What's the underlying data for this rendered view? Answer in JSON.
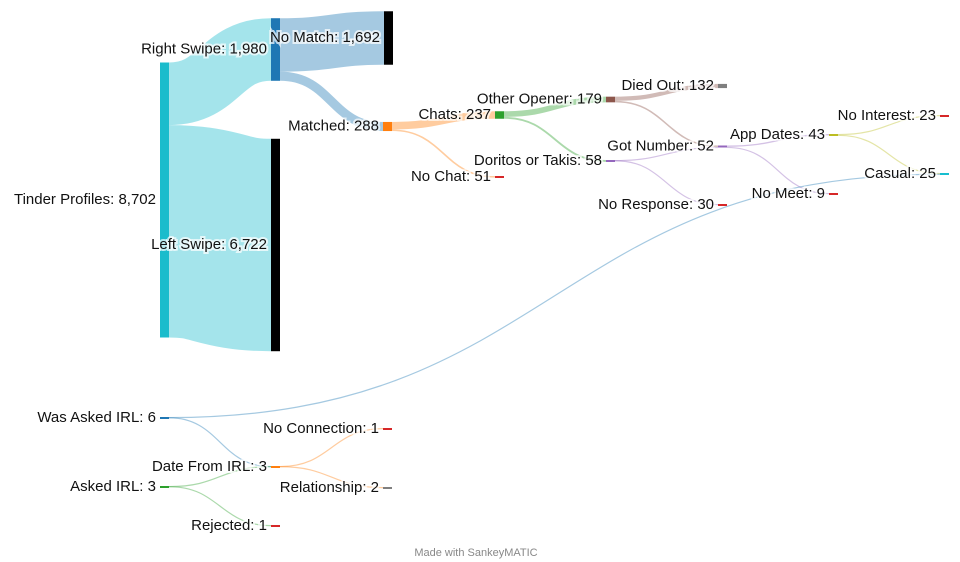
{
  "chart_data": {
    "type": "sankey",
    "footer": "Made with SankeyMATIC",
    "nodes": [
      {
        "label": "Tinder Profiles: 8,702",
        "value": 8702,
        "color": "#1bbccc"
      },
      {
        "label": "Right Swipe: 1,980",
        "value": 1980,
        "color": "#1f77b4"
      },
      {
        "label": "Left Swipe: 6,722",
        "value": 6722,
        "color": "#000000"
      },
      {
        "label": "No Match: 1,692",
        "value": 1692,
        "color": "#000000"
      },
      {
        "label": "Matched: 288",
        "value": 288,
        "color": "#ff7f0e"
      },
      {
        "label": "No Chat: 51",
        "value": 51,
        "color": "#d62728"
      },
      {
        "label": "Chats: 237",
        "value": 237,
        "color": "#2ca02c"
      },
      {
        "label": "Other Opener: 179",
        "value": 179,
        "color": "#8c564b"
      },
      {
        "label": "Doritos or Takis: 58",
        "value": 58,
        "color": "#9467bd"
      },
      {
        "label": "Died Out: 132",
        "value": 132,
        "color": "#7f7f7f"
      },
      {
        "label": "No Response: 30",
        "value": 30,
        "color": "#d62728"
      },
      {
        "label": "Got Number: 52",
        "value": 52,
        "color": "#9467bd"
      },
      {
        "label": "App Dates: 43",
        "value": 43,
        "color": "#bcbd22"
      },
      {
        "label": "No Meet: 9",
        "value": 9,
        "color": "#d62728"
      },
      {
        "label": "No Interest: 23",
        "value": 23,
        "color": "#d62728"
      },
      {
        "label": "Casual: 25",
        "value": 25,
        "color": "#17becf"
      },
      {
        "label": "Was Asked IRL: 6",
        "value": 6,
        "color": "#1f77b4"
      },
      {
        "label": "Asked IRL: 3",
        "value": 3,
        "color": "#2ca02c"
      },
      {
        "label": "Date From IRL: 3",
        "value": 3,
        "color": "#ff7f0e"
      },
      {
        "label": "Rejected: 1",
        "value": 1,
        "color": "#d62728"
      },
      {
        "label": "No Connection: 1",
        "value": 1,
        "color": "#d62728"
      },
      {
        "label": "Relationship: 2",
        "value": 2,
        "color": "#7f7f7f"
      }
    ],
    "links": [
      {
        "source": 0,
        "target": 1,
        "value": 1980
      },
      {
        "source": 0,
        "target": 2,
        "value": 6722
      },
      {
        "source": 1,
        "target": 3,
        "value": 1692
      },
      {
        "source": 1,
        "target": 4,
        "value": 288
      },
      {
        "source": 4,
        "target": 6,
        "value": 237
      },
      {
        "source": 4,
        "target": 5,
        "value": 51
      },
      {
        "source": 6,
        "target": 7,
        "value": 179
      },
      {
        "source": 6,
        "target": 8,
        "value": 58
      },
      {
        "source": 7,
        "target": 9,
        "value": 132
      },
      {
        "source": 7,
        "target": 11,
        "value": 47
      },
      {
        "source": 8,
        "target": 11,
        "value": 5
      },
      {
        "source": 8,
        "target": 10,
        "value": 30
      },
      {
        "source": 11,
        "target": 12,
        "value": 43
      },
      {
        "source": 11,
        "target": 13,
        "value": 9
      },
      {
        "source": 12,
        "target": 14,
        "value": 23
      },
      {
        "source": 12,
        "target": 15,
        "value": 20
      },
      {
        "source": 16,
        "target": 15,
        "value": 5
      },
      {
        "source": 16,
        "target": 18,
        "value": 1
      },
      {
        "source": 17,
        "target": 18,
        "value": 2
      },
      {
        "source": 17,
        "target": 19,
        "value": 1
      },
      {
        "source": 18,
        "target": 20,
        "value": 1
      },
      {
        "source": 18,
        "target": 21,
        "value": 2
      }
    ]
  }
}
